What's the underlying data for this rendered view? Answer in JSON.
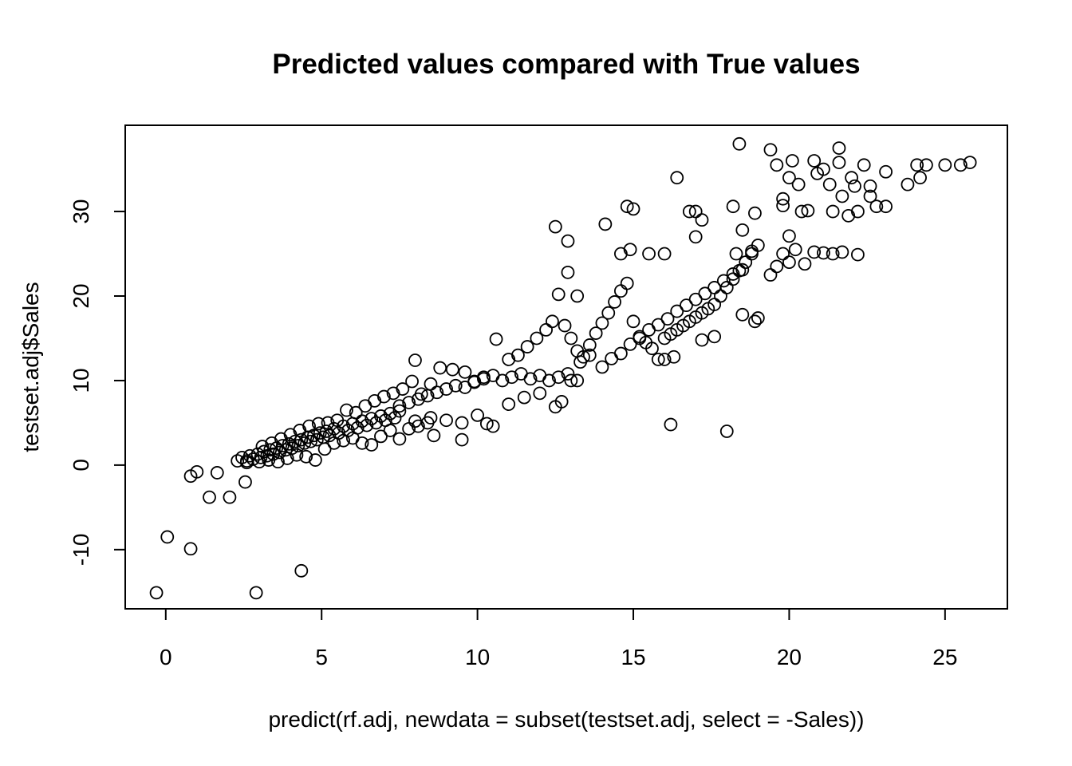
{
  "chart_data": {
    "type": "scatter",
    "title": "Predicted values compared with True values",
    "xlabel": "predict(rf.adj, newdata = subset(testset.adj, select = -Sales))",
    "ylabel": "testset.adj$Sales",
    "xlim": [
      -1.3,
      27.0
    ],
    "ylim": [
      -17.0,
      40.2
    ],
    "xticks": [
      0,
      5,
      10,
      15,
      20,
      25
    ],
    "yticks": [
      -10,
      0,
      10,
      20,
      30
    ],
    "xtick_labels": [
      "0",
      "5",
      "10",
      "15",
      "20",
      "25"
    ],
    "ytick_labels": [
      "-10",
      "0",
      "10",
      "20",
      "30"
    ],
    "grid": false,
    "marker": "open-circle",
    "points": [
      [
        -0.3,
        -15.1
      ],
      [
        0.05,
        -8.5
      ],
      [
        0.8,
        -9.9
      ],
      [
        2.9,
        -15.1
      ],
      [
        4.35,
        -12.5
      ],
      [
        0.8,
        -1.3
      ],
      [
        1.0,
        -0.8
      ],
      [
        1.4,
        -3.8
      ],
      [
        1.65,
        -0.9
      ],
      [
        2.05,
        -3.8
      ],
      [
        2.55,
        -2.0
      ],
      [
        2.3,
        0.5
      ],
      [
        2.45,
        0.9
      ],
      [
        2.6,
        0.5
      ],
      [
        2.7,
        1.1
      ],
      [
        2.8,
        0.7
      ],
      [
        2.95,
        1.3
      ],
      [
        3.05,
        0.9
      ],
      [
        3.15,
        1.6
      ],
      [
        3.25,
        1.1
      ],
      [
        3.35,
        1.8
      ],
      [
        3.45,
        1.3
      ],
      [
        3.55,
        2.0
      ],
      [
        3.65,
        1.5
      ],
      [
        3.75,
        2.3
      ],
      [
        3.85,
        1.8
      ],
      [
        3.95,
        2.5
      ],
      [
        4.05,
        2.0
      ],
      [
        4.15,
        2.8
      ],
      [
        4.25,
        2.3
      ],
      [
        4.35,
        3.0
      ],
      [
        4.45,
        2.6
      ],
      [
        4.55,
        3.3
      ],
      [
        4.65,
        2.8
      ],
      [
        4.75,
        3.5
      ],
      [
        4.85,
        3.0
      ],
      [
        4.95,
        3.8
      ],
      [
        5.05,
        3.3
      ],
      [
        5.15,
        4.0
      ],
      [
        5.25,
        3.5
      ],
      [
        5.4,
        4.3
      ],
      [
        5.55,
        3.8
      ],
      [
        5.7,
        4.6
      ],
      [
        5.85,
        4.1
      ],
      [
        6.0,
        4.9
      ],
      [
        6.15,
        4.4
      ],
      [
        6.3,
        5.2
      ],
      [
        6.45,
        4.7
      ],
      [
        6.6,
        5.5
      ],
      [
        6.75,
        5.0
      ],
      [
        6.9,
        5.8
      ],
      [
        7.05,
        5.3
      ],
      [
        7.2,
        6.1
      ],
      [
        7.35,
        5.6
      ],
      [
        7.5,
        6.4
      ],
      [
        2.6,
        0.3
      ],
      [
        3.0,
        0.4
      ],
      [
        3.3,
        0.6
      ],
      [
        3.6,
        0.4
      ],
      [
        3.9,
        0.8
      ],
      [
        4.2,
        1.2
      ],
      [
        4.5,
        1.0
      ],
      [
        4.8,
        0.6
      ],
      [
        5.1,
        1.9
      ],
      [
        5.4,
        2.6
      ],
      [
        5.7,
        2.9
      ],
      [
        6.0,
        3.2
      ],
      [
        6.3,
        2.6
      ],
      [
        6.6,
        2.4
      ],
      [
        6.9,
        3.4
      ],
      [
        7.2,
        4.1
      ],
      [
        7.5,
        3.1
      ],
      [
        7.8,
        4.3
      ],
      [
        8.1,
        4.6
      ],
      [
        8.4,
        5.0
      ],
      [
        3.1,
        2.2
      ],
      [
        3.4,
        2.6
      ],
      [
        3.7,
        3.1
      ],
      [
        4.0,
        3.6
      ],
      [
        4.3,
        4.1
      ],
      [
        4.6,
        4.6
      ],
      [
        4.9,
        4.9
      ],
      [
        5.2,
        5.0
      ],
      [
        5.5,
        5.3
      ],
      [
        5.8,
        6.5
      ],
      [
        6.1,
        6.2
      ],
      [
        6.4,
        7.0
      ],
      [
        6.7,
        7.6
      ],
      [
        7.0,
        8.1
      ],
      [
        7.3,
        8.5
      ],
      [
        7.6,
        9.0
      ],
      [
        7.9,
        9.9
      ],
      [
        8.2,
        8.4
      ],
      [
        8.5,
        9.6
      ],
      [
        8.8,
        11.5
      ],
      [
        8.0,
        12.4
      ],
      [
        9.2,
        11.3
      ],
      [
        9.6,
        11.0
      ],
      [
        9.9,
        9.9
      ],
      [
        10.2,
        10.4
      ],
      [
        7.5,
        7.0
      ],
      [
        7.8,
        7.4
      ],
      [
        8.1,
        7.8
      ],
      [
        8.4,
        8.2
      ],
      [
        8.7,
        8.6
      ],
      [
        9.0,
        9.0
      ],
      [
        9.3,
        9.4
      ],
      [
        9.6,
        9.2
      ],
      [
        9.9,
        9.8
      ],
      [
        10.2,
        10.2
      ],
      [
        10.5,
        10.6
      ],
      [
        10.8,
        10.0
      ],
      [
        11.1,
        10.4
      ],
      [
        11.4,
        10.8
      ],
      [
        11.7,
        10.2
      ],
      [
        12.0,
        10.6
      ],
      [
        12.3,
        10.0
      ],
      [
        12.6,
        10.4
      ],
      [
        12.9,
        10.8
      ],
      [
        13.2,
        10.0
      ],
      [
        8.0,
        5.2
      ],
      [
        8.5,
        5.6
      ],
      [
        9.0,
        5.3
      ],
      [
        9.5,
        5.0
      ],
      [
        10.0,
        5.9
      ],
      [
        10.3,
        4.9
      ],
      [
        10.5,
        4.6
      ],
      [
        9.5,
        3.0
      ],
      [
        8.6,
        3.5
      ],
      [
        11.0,
        7.2
      ],
      [
        11.5,
        8.0
      ],
      [
        12.0,
        8.5
      ],
      [
        12.5,
        6.9
      ],
      [
        12.7,
        7.5
      ],
      [
        13.0,
        10.0
      ],
      [
        10.6,
        14.9
      ],
      [
        11.0,
        12.5
      ],
      [
        11.3,
        13.0
      ],
      [
        11.6,
        14.0
      ],
      [
        11.9,
        15.0
      ],
      [
        12.2,
        16.0
      ],
      [
        12.4,
        17.0
      ],
      [
        12.6,
        20.2
      ],
      [
        12.8,
        16.5
      ],
      [
        13.0,
        15.0
      ],
      [
        13.2,
        13.5
      ],
      [
        13.4,
        12.8
      ],
      [
        13.6,
        14.2
      ],
      [
        13.8,
        15.6
      ],
      [
        14.0,
        16.8
      ],
      [
        14.2,
        18.0
      ],
      [
        14.4,
        19.3
      ],
      [
        14.6,
        20.6
      ],
      [
        14.8,
        21.5
      ],
      [
        15.0,
        17.0
      ],
      [
        15.2,
        15.0
      ],
      [
        15.4,
        14.5
      ],
      [
        15.6,
        13.8
      ],
      [
        15.8,
        12.5
      ],
      [
        16.0,
        15.0
      ],
      [
        16.2,
        15.5
      ],
      [
        16.4,
        16.0
      ],
      [
        16.6,
        16.5
      ],
      [
        16.8,
        17.0
      ],
      [
        17.0,
        17.5
      ],
      [
        17.2,
        18.0
      ],
      [
        17.4,
        18.5
      ],
      [
        17.6,
        19.0
      ],
      [
        17.8,
        20.0
      ],
      [
        18.0,
        21.0
      ],
      [
        18.2,
        22.0
      ],
      [
        18.4,
        23.0
      ],
      [
        18.6,
        24.0
      ],
      [
        18.8,
        25.0
      ],
      [
        19.0,
        26.0
      ],
      [
        12.5,
        28.2
      ],
      [
        12.9,
        26.5
      ],
      [
        12.9,
        22.8
      ],
      [
        13.2,
        20.0
      ],
      [
        14.1,
        28.5
      ],
      [
        14.8,
        30.6
      ],
      [
        15.0,
        30.3
      ],
      [
        14.6,
        25.0
      ],
      [
        14.9,
        25.5
      ],
      [
        15.5,
        25.0
      ],
      [
        16.0,
        25.0
      ],
      [
        16.4,
        34.0
      ],
      [
        16.8,
        30.0
      ],
      [
        17.0,
        30.0
      ],
      [
        17.2,
        29.0
      ],
      [
        17.0,
        27.0
      ],
      [
        18.2,
        30.6
      ],
      [
        18.4,
        38.0
      ],
      [
        18.5,
        27.8
      ],
      [
        18.9,
        29.8
      ],
      [
        18.3,
        25.0
      ],
      [
        18.8,
        25.3
      ],
      [
        16.2,
        4.8
      ],
      [
        18.0,
        4.0
      ],
      [
        16.0,
        12.5
      ],
      [
        16.3,
        12.8
      ],
      [
        17.2,
        14.8
      ],
      [
        17.6,
        15.2
      ],
      [
        18.5,
        17.8
      ],
      [
        18.9,
        17.0
      ],
      [
        19.0,
        17.4
      ],
      [
        13.3,
        12.2
      ],
      [
        13.6,
        13.0
      ],
      [
        14.0,
        11.6
      ],
      [
        14.3,
        12.6
      ],
      [
        14.6,
        13.2
      ],
      [
        14.9,
        14.3
      ],
      [
        15.2,
        15.2
      ],
      [
        15.5,
        16.0
      ],
      [
        15.8,
        16.6
      ],
      [
        16.1,
        17.3
      ],
      [
        16.4,
        18.2
      ],
      [
        16.7,
        18.9
      ],
      [
        17.0,
        19.6
      ],
      [
        17.3,
        20.3
      ],
      [
        17.6,
        21.0
      ],
      [
        17.9,
        21.8
      ],
      [
        18.2,
        22.6
      ],
      [
        18.5,
        23.1
      ],
      [
        19.4,
        22.5
      ],
      [
        19.6,
        23.5
      ],
      [
        19.8,
        25.0
      ],
      [
        20.0,
        24.0
      ],
      [
        20.2,
        25.5
      ],
      [
        20.5,
        23.8
      ],
      [
        20.8,
        25.2
      ],
      [
        21.1,
        25.1
      ],
      [
        21.4,
        25.0
      ],
      [
        21.7,
        25.2
      ],
      [
        22.2,
        24.9
      ],
      [
        20.0,
        27.1
      ],
      [
        19.4,
        37.3
      ],
      [
        19.6,
        35.5
      ],
      [
        19.8,
        31.5
      ],
      [
        19.8,
        30.7
      ],
      [
        20.0,
        34.0
      ],
      [
        20.1,
        36.0
      ],
      [
        20.3,
        33.2
      ],
      [
        20.4,
        30.0
      ],
      [
        20.6,
        30.1
      ],
      [
        20.8,
        36.0
      ],
      [
        20.9,
        34.5
      ],
      [
        21.1,
        35.0
      ],
      [
        21.3,
        33.2
      ],
      [
        21.4,
        30.0
      ],
      [
        21.6,
        37.5
      ],
      [
        21.6,
        35.8
      ],
      [
        21.7,
        31.8
      ],
      [
        21.9,
        29.5
      ],
      [
        22.0,
        34.0
      ],
      [
        22.1,
        33.0
      ],
      [
        22.2,
        30.0
      ],
      [
        22.4,
        35.5
      ],
      [
        22.6,
        33.0
      ],
      [
        22.6,
        31.8
      ],
      [
        22.8,
        30.6
      ],
      [
        23.1,
        34.7
      ],
      [
        23.1,
        30.6
      ],
      [
        23.8,
        33.2
      ],
      [
        24.1,
        35.5
      ],
      [
        24.2,
        34.0
      ],
      [
        24.4,
        35.5
      ],
      [
        25.0,
        35.5
      ],
      [
        25.5,
        35.5
      ],
      [
        25.8,
        35.8
      ]
    ]
  }
}
